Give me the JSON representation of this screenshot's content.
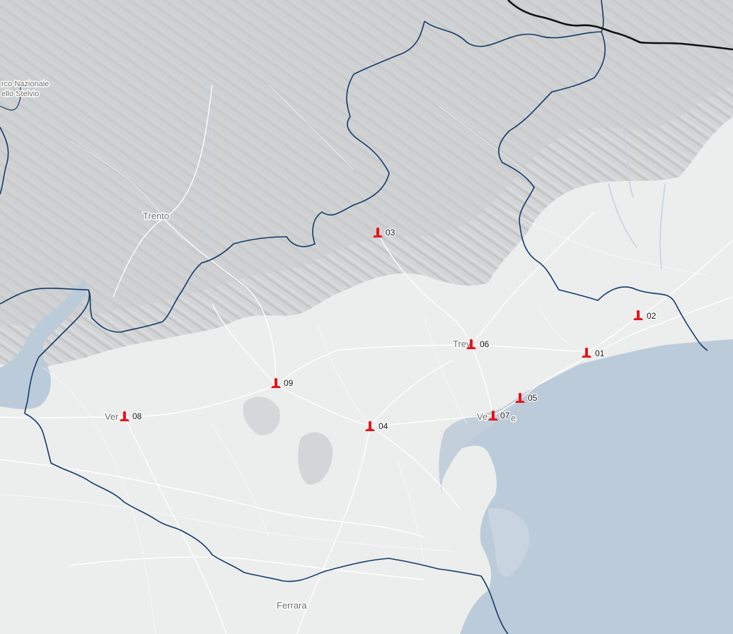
{
  "map": {
    "type": "regional-map",
    "marker_color": "#e8141b",
    "border_color": "#153b6b",
    "national_border_color": "#111111",
    "water_color": "#bccbd9",
    "mountain_color": "#d1d2d3",
    "plain_color": "#eceded",
    "road_color": "#ffffff"
  },
  "places": {
    "park_line1": "rco Nazionale",
    "park_line2": "ello Stelvio",
    "trento": "Trento",
    "treviso": "Trevi",
    "verona": "Ver",
    "venezia_a": "Ve",
    "venezia_b": "e",
    "ferrara": "Ferrara"
  },
  "markers": [
    {
      "id": "01",
      "icon": "marker-pin-icon"
    },
    {
      "id": "02",
      "icon": "marker-pin-icon"
    },
    {
      "id": "03",
      "icon": "marker-pin-icon"
    },
    {
      "id": "04",
      "icon": "marker-pin-icon"
    },
    {
      "id": "05",
      "icon": "marker-pin-icon"
    },
    {
      "id": "06",
      "icon": "marker-pin-icon"
    },
    {
      "id": "07",
      "icon": "marker-pin-icon"
    },
    {
      "id": "08",
      "icon": "marker-pin-icon"
    },
    {
      "id": "09",
      "icon": "marker-pin-icon"
    }
  ]
}
